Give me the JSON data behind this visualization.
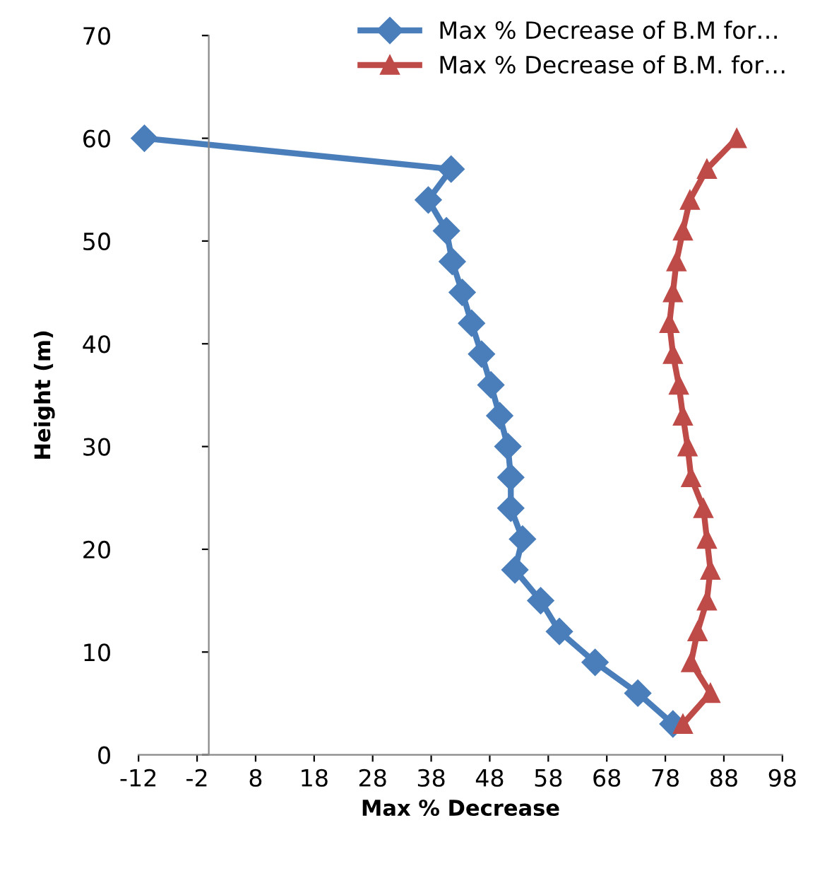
{
  "chart_data": {
    "type": "line",
    "xlabel": "Max % Decrease",
    "ylabel": "Height (m)",
    "xlim": [
      -12,
      98
    ],
    "xticks": [
      -12,
      -2,
      8,
      18,
      28,
      38,
      48,
      58,
      68,
      78,
      88,
      98
    ],
    "ylim": [
      0,
      70
    ],
    "yticks": [
      0,
      10,
      20,
      30,
      40,
      50,
      60,
      70
    ],
    "grid": false,
    "legend": "top right",
    "line_style": "solid",
    "series": [
      {
        "name": "Max % Decrease of B.M for…",
        "color": "#4a7ebb",
        "marker": "diamond",
        "x": [
          -11,
          41.4,
          37.5,
          40.6,
          41.6,
          43.3,
          44.9,
          46.6,
          48.2,
          49.7,
          51.1,
          51.6,
          51.6,
          53.6,
          52.3,
          56.7,
          59.9,
          66.0,
          73.3,
          79.3
        ],
        "values": [
          60,
          57,
          54,
          51,
          48,
          45,
          42,
          39,
          36,
          33,
          30,
          27,
          24,
          21,
          18,
          15,
          12,
          9,
          6,
          3
        ]
      },
      {
        "name": "Max % Decrease of B.M. for…",
        "color": "#be4b48",
        "marker": "triangle",
        "x": [
          90.2,
          85.1,
          82.2,
          81.0,
          79.9,
          79.3,
          78.7,
          79.3,
          80.3,
          81.0,
          81.8,
          82.4,
          84.5,
          85.1,
          85.7,
          85.1,
          83.5,
          82.4,
          85.7,
          81.0
        ],
        "values": [
          60,
          57,
          54,
          51,
          48,
          45,
          42,
          39,
          36,
          33,
          30,
          27,
          24,
          21,
          18,
          15,
          12,
          9,
          6,
          3
        ]
      }
    ]
  }
}
